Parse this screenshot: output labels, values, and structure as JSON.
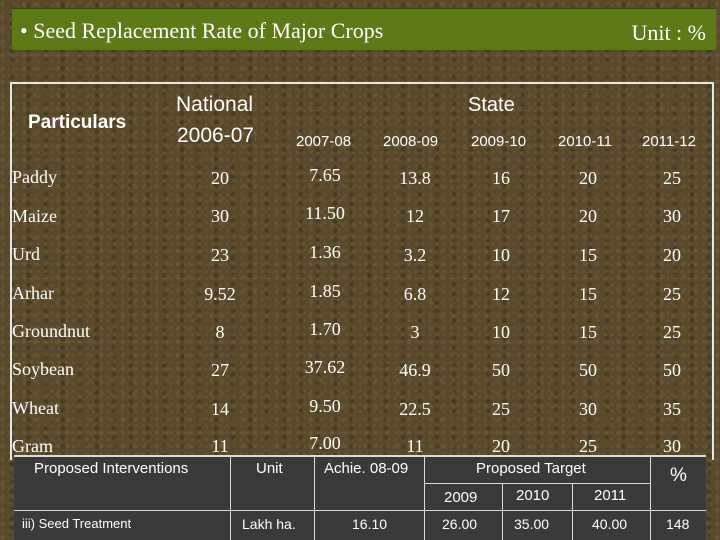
{
  "header": {
    "title": "• Seed Replacement Rate of Major Crops",
    "unit": "Unit : %"
  },
  "table": {
    "particulars_label": "Particulars",
    "national_label": "National",
    "national_year": "2006-07",
    "state_label": "State",
    "state_years": [
      "2007-08",
      "2008-09",
      "2009-10",
      "2010-11",
      "2011-12"
    ],
    "rows": [
      {
        "crop": "Paddy",
        "national": "20",
        "values": [
          "7.65",
          "13.8",
          "16",
          "20",
          "25"
        ]
      },
      {
        "crop": "Maize",
        "national": "30",
        "values": [
          "11.50",
          "12",
          "17",
          "20",
          "30"
        ]
      },
      {
        "crop": "Urd",
        "national": "23",
        "values": [
          "1.36",
          "3.2",
          "10",
          "15",
          "20"
        ]
      },
      {
        "crop": "Arhar",
        "national": "9.52",
        "values": [
          "1.85",
          "6.8",
          "12",
          "15",
          "25"
        ]
      },
      {
        "crop": "Groundnut",
        "national": "8",
        "values": [
          "1.70",
          "3",
          "10",
          "15",
          "25"
        ]
      },
      {
        "crop": "Soybean",
        "national": "27",
        "values": [
          "37.62",
          "46.9",
          "50",
          "50",
          "50"
        ]
      },
      {
        "crop": "Wheat",
        "national": "14",
        "values": [
          "9.50",
          "22.5",
          "25",
          "30",
          "35"
        ]
      },
      {
        "crop": "Gram",
        "national": "11",
        "values": [
          "7.00",
          "11",
          "20",
          "25",
          "30"
        ]
      }
    ]
  },
  "interventions": {
    "col_intervention": "Proposed Interventions",
    "col_unit": "Unit",
    "col_achie": "Achie. 08-09",
    "col_target": "Proposed Target",
    "col_percent": "%",
    "target_years": [
      "2009",
      "2010",
      "2011"
    ],
    "row": {
      "intervention": "iii) Seed Treatment",
      "unit": "Lakh ha.",
      "achie": "16.10",
      "targets": [
        "26.00",
        "35.00",
        "40.00"
      ],
      "percent": "148"
    }
  }
}
